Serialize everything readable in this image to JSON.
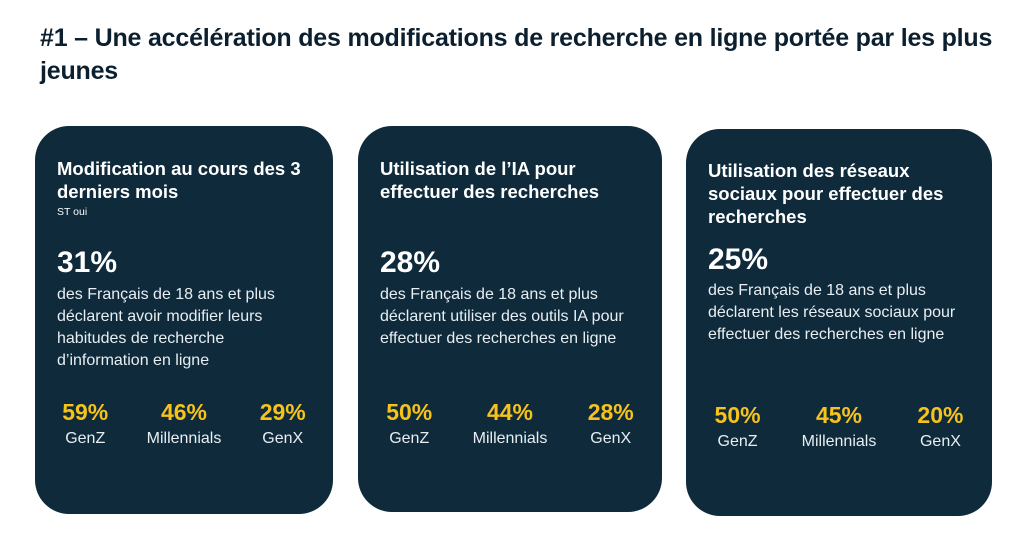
{
  "title": "#1 – Une accélération des modifications de recherche en ligne portée par les plus jeunes",
  "colors": {
    "card_bg": "#0e2a3b",
    "accent": "#f6c21b",
    "title": "#0c1f2e"
  },
  "cards": [
    {
      "title": "Modification au cours des 3 derniers mois",
      "subtitle": "ST oui",
      "big_value": "31%",
      "description": "des Français de 18 ans et plus déclarent avoir modifier leurs habitudes de recherche d’information en ligne",
      "stats": [
        {
          "value": "59%",
          "label": "GenZ"
        },
        {
          "value": "46%",
          "label": "Millennials"
        },
        {
          "value": "29%",
          "label": "GenX"
        }
      ]
    },
    {
      "title": "Utilisation de l’IA pour effectuer des recherches",
      "big_value": "28%",
      "description": "des Français de 18 ans et plus déclarent utiliser des outils IA pour effectuer des recherches en ligne",
      "stats": [
        {
          "value": "50%",
          "label": "GenZ"
        },
        {
          "value": "44%",
          "label": "Millennials"
        },
        {
          "value": "28%",
          "label": "GenX"
        }
      ]
    },
    {
      "title": "Utilisation des réseaux sociaux pour effectuer des recherches",
      "big_value": "25%",
      "description": "des Français de 18 ans et plus déclarent les réseaux sociaux pour effectuer des recherches en ligne",
      "stats": [
        {
          "value": "50%",
          "label": "GenZ"
        },
        {
          "value": "45%",
          "label": "Millennials"
        },
        {
          "value": "20%",
          "label": "GenX"
        }
      ]
    }
  ]
}
